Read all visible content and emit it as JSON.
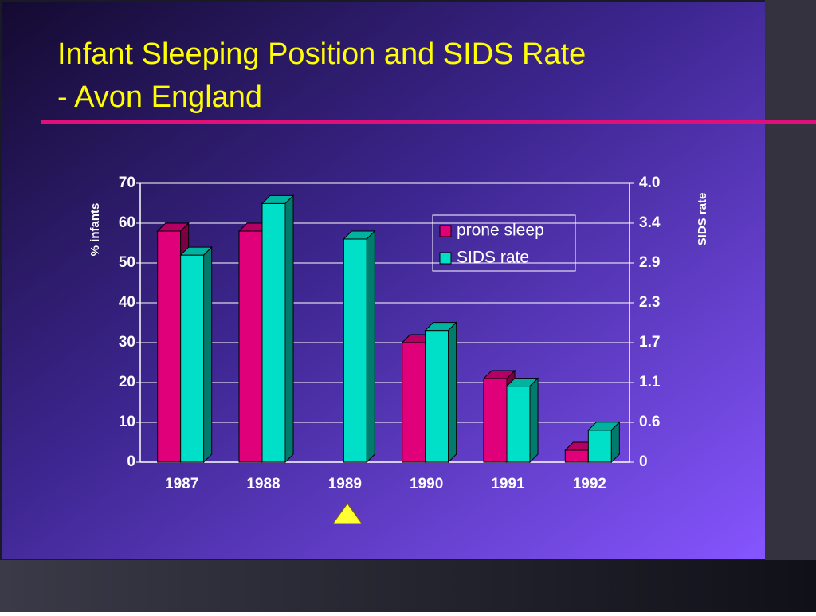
{
  "chart_data": {
    "type": "bar",
    "title": [
      "Infant Sleeping Position and SIDS Rate",
      "- Avon England"
    ],
    "categories": [
      "1987",
      "1988",
      "1989",
      "1990",
      "1991",
      "1992"
    ],
    "series": [
      {
        "name": "prone sleep",
        "color": "#e0007a",
        "values": [
          58,
          58,
          null,
          30,
          21,
          3
        ]
      },
      {
        "name": "SIDS rate",
        "color": "#00e0c8",
        "axis": "y2",
        "values": [
          2.97,
          3.71,
          3.2,
          1.89,
          1.09,
          0.46
        ]
      }
    ],
    "ylabel": "% infants",
    "y2label": "SIDS rate",
    "ylim": [
      0,
      70
    ],
    "yticks": [
      0,
      10,
      20,
      30,
      40,
      50,
      60,
      70
    ],
    "y2lim": [
      0,
      4
    ],
    "y2ticks": [
      0,
      {
        "value": 0.571,
        "label": "0.6"
      },
      {
        "value": 1.143,
        "label": "1.1"
      },
      {
        "value": 1.714,
        "label": "1.7"
      },
      {
        "value": 2.286,
        "label": "2.3"
      },
      {
        "value": 2.857,
        "label": "2.9"
      },
      {
        "value": 3.429,
        "label": "3.4"
      },
      {
        "value": 4,
        "label": "4.0"
      }
    ],
    "grid": true,
    "legend": "upper right"
  }
}
